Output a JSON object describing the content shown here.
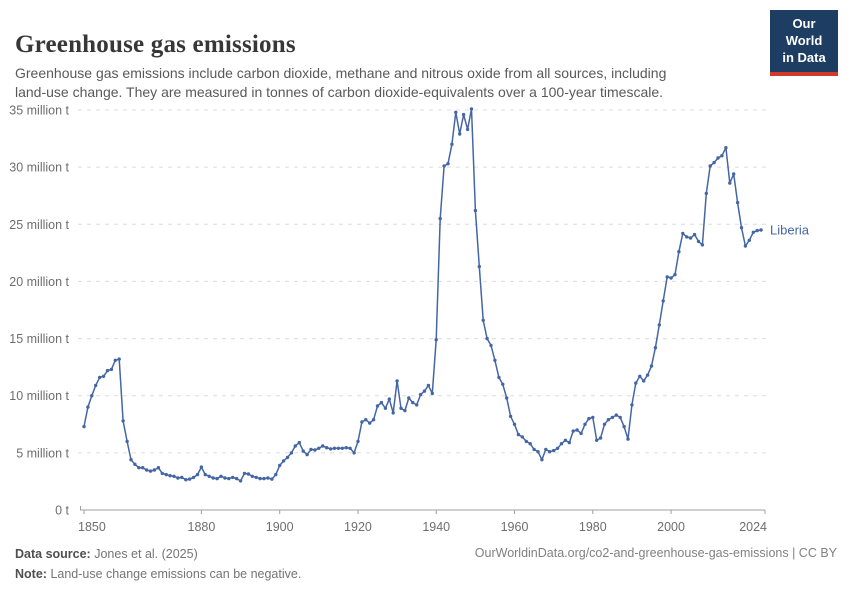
{
  "header": {
    "title": "Greenhouse gas emissions",
    "subtitle": "Greenhouse gas emissions include carbon dioxide, methane and nitrous oxide from all sources, including land-use change. They are measured in tonnes of carbon dioxide-equivalents over a 100-year timescale.",
    "logo": {
      "line1": "Our World",
      "line2": "in Data"
    }
  },
  "footer": {
    "data_source_label": "Data source:",
    "data_source_value": "Jones et al. (2025)",
    "note_label": "Note:",
    "note_value": "Land-use change emissions can be negative.",
    "attribution": "OurWorldinData.org/co2-and-greenhouse-gas-emissions | CC BY"
  },
  "colors": {
    "line": "#4566a4",
    "entity_label": "#4566a4",
    "logo_bg": "#1d3d63",
    "logo_red": "#d0392c",
    "grid": "#dcdcdc",
    "axis": "#a0a0a0",
    "tick_text": "#6e6e6e"
  },
  "chart_data": {
    "type": "line",
    "title": "Greenhouse gas emissions",
    "entity": "Liberia",
    "unit": "tonnes of CO2-equivalents",
    "grid": true,
    "xlim": [
      1850,
      2024
    ],
    "ylim": [
      0,
      35000000
    ],
    "x_ticks": [
      1850,
      1880,
      1900,
      1920,
      1940,
      1960,
      1980,
      2000,
      2024
    ],
    "x_tick_labels": [
      "1850",
      "1880",
      "1900",
      "1920",
      "1940",
      "1960",
      "1980",
      "2000",
      "2024"
    ],
    "y_ticks": [
      0,
      5,
      10,
      15,
      20,
      25,
      30,
      35
    ],
    "y_tick_labels": [
      "0 t",
      "5 million t",
      "10 million t",
      "15 million t",
      "20 million t",
      "25 million t",
      "30 million t",
      "35 million t"
    ],
    "value_unit": "million t",
    "series": [
      {
        "name": "Liberia",
        "start_year": 1850,
        "end_year": 2023,
        "values_million_t": [
          7.3,
          9.0,
          10.0,
          10.9,
          11.6,
          11.7,
          12.2,
          12.3,
          13.1,
          13.2,
          7.8,
          6.0,
          4.4,
          4.0,
          3.7,
          3.7,
          3.5,
          3.4,
          3.5,
          3.7,
          3.2,
          3.1,
          3.0,
          2.95,
          2.8,
          2.85,
          2.65,
          2.7,
          2.85,
          3.1,
          3.75,
          3.1,
          2.95,
          2.8,
          2.75,
          2.95,
          2.8,
          2.75,
          2.85,
          2.75,
          2.55,
          3.2,
          3.15,
          2.95,
          2.85,
          2.75,
          2.75,
          2.8,
          2.7,
          3.1,
          3.9,
          4.3,
          4.6,
          5.0,
          5.6,
          5.9,
          5.15,
          4.85,
          5.3,
          5.25,
          5.4,
          5.6,
          5.45,
          5.35,
          5.4,
          5.4,
          5.4,
          5.45,
          5.4,
          5.0,
          6.0,
          7.7,
          7.9,
          7.6,
          7.9,
          9.1,
          9.4,
          8.9,
          9.7,
          8.5,
          11.3,
          8.9,
          8.7,
          9.8,
          9.4,
          9.2,
          10.1,
          10.4,
          10.9,
          10.2,
          14.9,
          25.5,
          30.1,
          30.3,
          32.0,
          34.8,
          32.9,
          34.6,
          33.3,
          35.1,
          26.2,
          21.3,
          16.6,
          15.0,
          14.4,
          13.1,
          11.6,
          11.0,
          9.8,
          8.2,
          7.5,
          6.6,
          6.4,
          6.0,
          5.8,
          5.3,
          5.1,
          4.4,
          5.3,
          5.1,
          5.2,
          5.4,
          5.8,
          6.1,
          5.9,
          6.9,
          7.0,
          6.7,
          7.5,
          8.0,
          8.1,
          6.1,
          6.3,
          7.5,
          7.9,
          8.1,
          8.3,
          8.1,
          7.3,
          6.2,
          9.2,
          11.1,
          11.7,
          11.3,
          11.8,
          12.6,
          14.2,
          16.2,
          18.3,
          20.4,
          20.3,
          20.6,
          22.6,
          24.2,
          23.9,
          23.8,
          24.1,
          23.5,
          23.2,
          27.7,
          30.1,
          30.4,
          30.8,
          31.0,
          31.7,
          28.6,
          29.4,
          26.9,
          24.7,
          23.1,
          23.6,
          24.3,
          24.45,
          24.5
        ]
      }
    ]
  }
}
